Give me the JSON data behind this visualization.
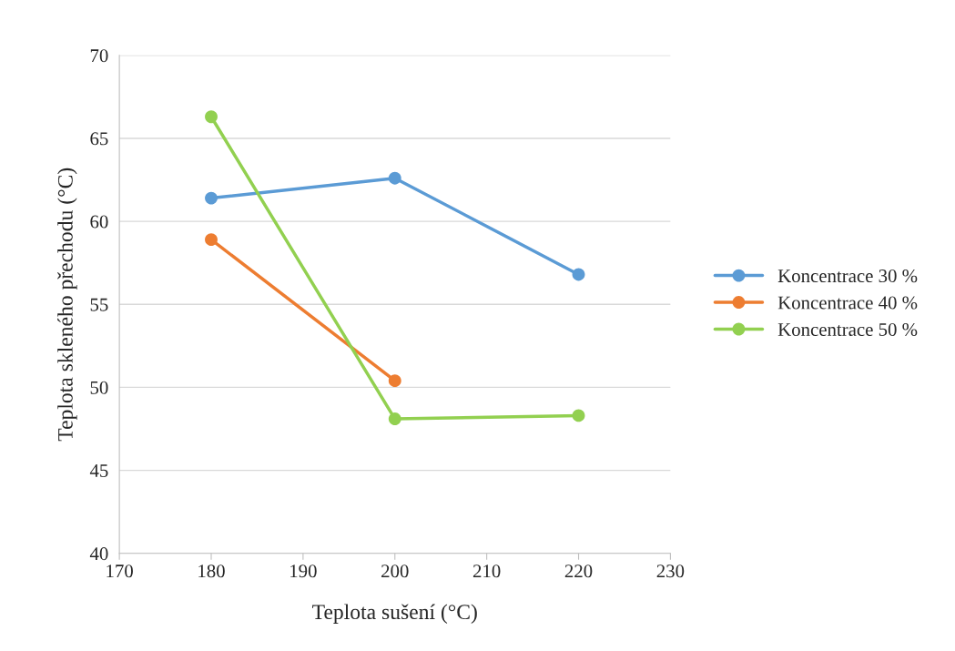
{
  "chart_data": {
    "type": "line",
    "xlabel": "Teplota sušení (°C)",
    "ylabel": "Teplota skleného přechodu (°C)",
    "x": [
      180,
      200,
      220
    ],
    "series": [
      {
        "name": "Koncentrace 30 %",
        "color": "#5b9bd5",
        "values": [
          61.4,
          62.6,
          56.8
        ]
      },
      {
        "name": "Koncentrace 40 %",
        "color": "#ed7d31",
        "values": [
          58.9,
          50.4,
          null
        ]
      },
      {
        "name": "Koncentrace 50 %",
        "color": "#92d050",
        "values": [
          66.3,
          48.1,
          48.3
        ]
      }
    ],
    "xlim": [
      170,
      230
    ],
    "xticks": [
      170,
      180,
      190,
      200,
      210,
      220,
      230
    ],
    "ylim": [
      40,
      70
    ],
    "yticks": [
      40,
      45,
      50,
      55,
      60,
      65,
      70
    ],
    "grid": "y",
    "legend": "right",
    "marker": "circle",
    "line_style": "solid"
  }
}
